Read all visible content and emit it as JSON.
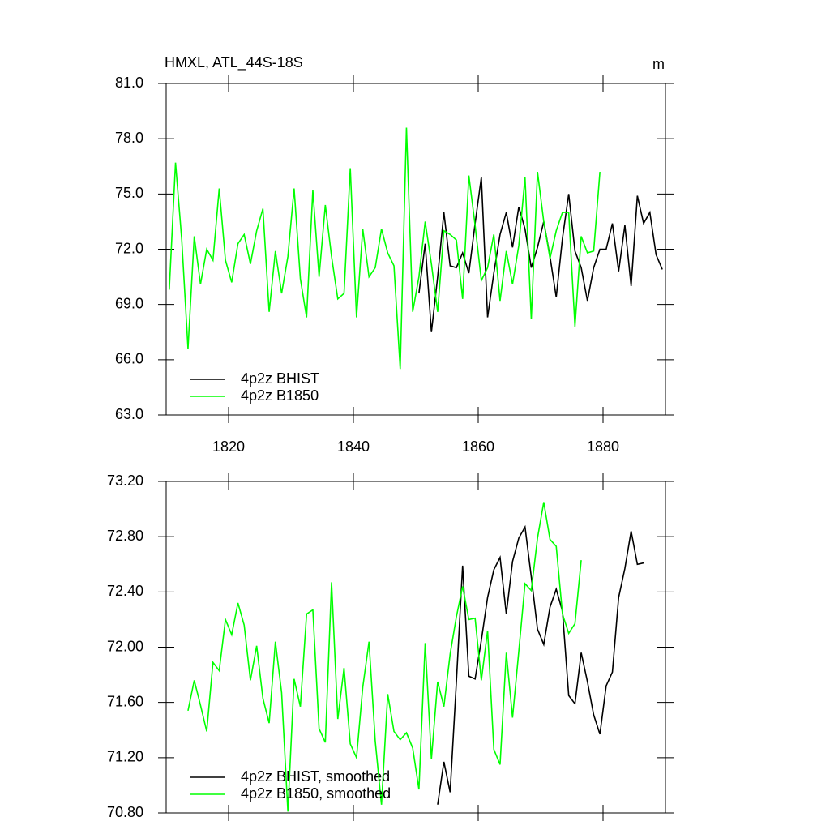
{
  "chart_data": [
    {
      "type": "line",
      "title": "HMXL, ATL_44S-18S",
      "units": "m",
      "xlim": [
        1810,
        1890
      ],
      "xticks": [
        1820,
        1840,
        1860,
        1880
      ],
      "xtick_labels": true,
      "ylim": [
        63,
        81
      ],
      "yticks": [
        {
          "value": 63,
          "label": "63.0"
        },
        {
          "value": 66,
          "label": "66.0"
        },
        {
          "value": 69,
          "label": "69.0"
        },
        {
          "value": 72,
          "label": "72.0"
        },
        {
          "value": 75,
          "label": "75.0"
        },
        {
          "value": 78,
          "label": "78.0"
        },
        {
          "value": 81,
          "label": "81.0"
        }
      ],
      "legend": "lower left",
      "series": [
        {
          "name": "4p2z BHIST",
          "color": "#000000",
          "x": [
            1850.5,
            1851.5,
            1852.5,
            1853.5,
            1854.5,
            1855.5,
            1856.5,
            1857.5,
            1858.5,
            1859.5,
            1860.5,
            1861.5,
            1862.5,
            1863.5,
            1864.5,
            1865.5,
            1866.5,
            1867.5,
            1868.5,
            1869.5,
            1870.5,
            1871.5,
            1872.5,
            1873.5,
            1874.5,
            1875.5,
            1876.5,
            1877.5,
            1878.5,
            1879.5,
            1880.5,
            1881.5,
            1882.5,
            1883.5,
            1884.5,
            1885.5,
            1886.5,
            1887.5,
            1888.5,
            1889.5
          ],
          "values": [
            69.6,
            72.3,
            67.5,
            70.5,
            74.0,
            71.1,
            71.0,
            71.8,
            70.7,
            73.4,
            75.9,
            68.3,
            70.7,
            72.8,
            74.0,
            72.1,
            74.3,
            73.1,
            71.0,
            72.1,
            73.5,
            71.6,
            69.4,
            72.6,
            75.0,
            71.9,
            71.0,
            69.2,
            71.0,
            72.0,
            72.0,
            73.4,
            70.8,
            73.3,
            70.0,
            74.9,
            73.4,
            74.0,
            71.7,
            70.9
          ]
        },
        {
          "name": "4p2z B1850",
          "color": "#00ff00",
          "x": [
            1810.5,
            1811.5,
            1812.5,
            1813.5,
            1814.5,
            1815.5,
            1816.5,
            1817.5,
            1818.5,
            1819.5,
            1820.5,
            1821.5,
            1822.5,
            1823.5,
            1824.5,
            1825.5,
            1826.5,
            1827.5,
            1828.5,
            1829.5,
            1830.5,
            1831.5,
            1832.5,
            1833.5,
            1834.5,
            1835.5,
            1836.5,
            1837.5,
            1838.5,
            1839.5,
            1840.5,
            1841.5,
            1842.5,
            1843.5,
            1844.5,
            1845.5,
            1846.5,
            1847.5,
            1848.5,
            1849.5,
            1850.5,
            1851.5,
            1852.5,
            1853.5,
            1854.5,
            1855.5,
            1856.5,
            1857.5,
            1858.5,
            1859.5,
            1860.5,
            1861.5,
            1862.5,
            1863.5,
            1864.5,
            1865.5,
            1866.5,
            1867.5,
            1868.5,
            1869.5,
            1870.5,
            1871.5,
            1872.5,
            1873.5,
            1874.5,
            1875.5,
            1876.5,
            1877.5,
            1878.5,
            1879.5
          ],
          "values": [
            69.8,
            76.7,
            72.5,
            66.6,
            72.7,
            70.1,
            72.0,
            71.4,
            75.3,
            71.4,
            70.2,
            72.3,
            72.8,
            71.2,
            73.0,
            74.2,
            68.6,
            71.9,
            69.6,
            71.6,
            75.3,
            70.4,
            68.3,
            75.2,
            70.5,
            74.4,
            71.6,
            69.3,
            69.6,
            76.4,
            68.3,
            73.1,
            70.5,
            71.0,
            73.1,
            71.8,
            71.1,
            65.5,
            78.6,
            68.6,
            70.5,
            73.5,
            71.2,
            68.6,
            73.0,
            72.8,
            72.5,
            69.3,
            76.0,
            73.3,
            70.3,
            71.0,
            72.8,
            69.2,
            71.9,
            70.1,
            72.2,
            75.9,
            68.2,
            76.2,
            73.5,
            71.5,
            73.0,
            74.0,
            74.0,
            67.8,
            72.7,
            71.8,
            71.9,
            76.2
          ]
        }
      ]
    },
    {
      "type": "line",
      "xlim": [
        1810,
        1890
      ],
      "xticks": [
        1820,
        1840,
        1860,
        1880
      ],
      "xtick_labels": false,
      "ylim": [
        70.8,
        73.2
      ],
      "yticks": [
        {
          "value": 70.8,
          "label": "70.80"
        },
        {
          "value": 71.2,
          "label": "71.20"
        },
        {
          "value": 71.6,
          "label": "71.60"
        },
        {
          "value": 72.0,
          "label": "72.00"
        },
        {
          "value": 72.4,
          "label": "72.40"
        },
        {
          "value": 72.8,
          "label": "72.80"
        },
        {
          "value": 73.2,
          "label": "73.20"
        }
      ],
      "legend": "lower left",
      "series": [
        {
          "name": "4p2z BHIST, smoothed",
          "color": "#000000",
          "x": [
            1853.5,
            1854.5,
            1855.5,
            1856.5,
            1857.5,
            1858.5,
            1859.5,
            1860.5,
            1861.5,
            1862.5,
            1863.5,
            1864.5,
            1865.5,
            1866.5,
            1867.5,
            1868.5,
            1869.5,
            1870.5,
            1871.5,
            1872.5,
            1873.5,
            1874.5,
            1875.5,
            1876.5,
            1877.5,
            1878.5,
            1879.5,
            1880.5,
            1881.5,
            1882.5,
            1883.5,
            1884.5,
            1885.5,
            1886.5
          ],
          "values": [
            70.86,
            71.17,
            70.95,
            71.75,
            72.59,
            71.79,
            71.77,
            72.05,
            72.36,
            72.56,
            72.65,
            72.24,
            72.62,
            72.79,
            72.87,
            72.51,
            72.13,
            72.02,
            72.29,
            72.42,
            72.26,
            71.65,
            71.59,
            71.96,
            71.75,
            71.51,
            71.37,
            71.72,
            71.82,
            72.36,
            72.57,
            72.84,
            72.6,
            72.61
          ]
        },
        {
          "name": "4p2z B1850, smoothed",
          "color": "#00ff00",
          "x": [
            1813.5,
            1814.5,
            1815.5,
            1816.5,
            1817.5,
            1818.5,
            1819.5,
            1820.5,
            1821.5,
            1822.5,
            1823.5,
            1824.5,
            1825.5,
            1826.5,
            1827.5,
            1828.5,
            1829.5,
            1830.5,
            1831.5,
            1832.5,
            1833.5,
            1834.5,
            1835.5,
            1836.5,
            1837.5,
            1838.5,
            1839.5,
            1840.5,
            1841.5,
            1842.5,
            1843.5,
            1844.5,
            1845.5,
            1846.5,
            1847.5,
            1848.5,
            1849.5,
            1850.5,
            1851.5,
            1852.5,
            1853.5,
            1854.5,
            1855.5,
            1856.5,
            1857.5,
            1858.5,
            1859.5,
            1860.5,
            1861.5,
            1862.5,
            1863.5,
            1864.5,
            1865.5,
            1866.5,
            1867.5,
            1868.5,
            1869.5,
            1870.5,
            1871.5,
            1872.5,
            1873.5,
            1874.5,
            1875.5,
            1876.5
          ],
          "values": [
            71.54,
            71.76,
            71.58,
            71.39,
            71.89,
            71.83,
            72.2,
            72.09,
            72.32,
            72.16,
            71.76,
            72.01,
            71.63,
            71.45,
            72.04,
            71.67,
            70.81,
            71.77,
            71.57,
            72.24,
            72.27,
            71.41,
            71.31,
            72.47,
            71.48,
            71.85,
            71.3,
            71.2,
            71.71,
            72.04,
            71.32,
            70.86,
            71.66,
            71.39,
            71.33,
            71.38,
            71.27,
            70.97,
            72.03,
            71.19,
            71.75,
            71.57,
            71.95,
            72.22,
            72.44,
            72.2,
            72.21,
            71.76,
            72.12,
            71.26,
            71.15,
            71.96,
            71.49,
            71.97,
            72.46,
            72.41,
            72.79,
            73.05,
            72.78,
            72.73,
            72.24,
            72.1,
            72.17,
            72.63
          ]
        }
      ]
    }
  ]
}
